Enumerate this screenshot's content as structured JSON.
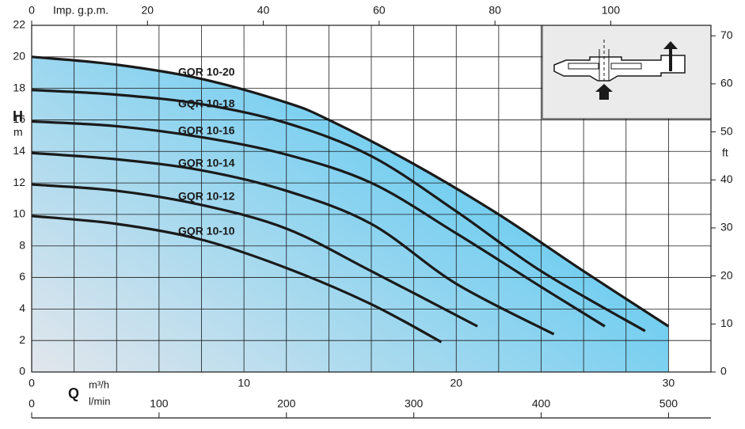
{
  "chart_data": {
    "type": "line",
    "y_label": "H",
    "y_unit": "m",
    "x_label": "Q",
    "x_unit": "m³/h",
    "xlim": [
      0,
      32
    ],
    "xticks": [
      0,
      10,
      20,
      30
    ],
    "xgrid": [
      2,
      4,
      6,
      8,
      12,
      14,
      16,
      18,
      22,
      24,
      26,
      28
    ],
    "ylim": [
      0,
      22
    ],
    "yticks": [
      0,
      2,
      4,
      6,
      8,
      10,
      12,
      14,
      16,
      18,
      20,
      22
    ],
    "grid": true,
    "line_color": "#1a1a1a",
    "fill_colors": [
      "#e2e6ec",
      "#4dc6f2"
    ],
    "x2": {
      "label": "l/min",
      "lim": [
        0,
        533.3
      ],
      "ticks": [
        0,
        100,
        200,
        300,
        400,
        500
      ]
    },
    "x3": {
      "label": "Imp. g.p.m.",
      "lim": [
        0,
        117.3
      ],
      "ticks": [
        0,
        20,
        40,
        60,
        80,
        100
      ]
    },
    "y2": {
      "label": "ft",
      "lim": [
        0,
        72.18
      ],
      "ticks": [
        0,
        10,
        20,
        30,
        40,
        50,
        60,
        70
      ]
    },
    "series": [
      {
        "name": "GQR 10-20",
        "x": [
          0,
          4,
          8,
          12,
          14,
          18,
          22,
          26,
          30
        ],
        "values": [
          20,
          19.5,
          18.6,
          17.1,
          16.0,
          13.2,
          10.0,
          6.4,
          2.9
        ]
      },
      {
        "name": "GQR 10-18",
        "x": [
          0,
          4,
          8,
          12,
          16,
          20,
          24,
          28.9
        ],
        "values": [
          17.9,
          17.6,
          17.0,
          15.8,
          13.7,
          10.2,
          6.4,
          2.6
        ]
      },
      {
        "name": "GQR 10-16",
        "x": [
          0,
          4,
          8,
          12,
          16,
          20,
          24,
          27
        ],
        "values": [
          15.9,
          15.6,
          14.9,
          13.8,
          12.0,
          8.8,
          5.4,
          2.9
        ]
      },
      {
        "name": "GQR 10-14",
        "x": [
          0,
          4,
          8,
          12,
          16,
          20,
          24.6
        ],
        "values": [
          13.9,
          13.5,
          12.8,
          11.5,
          9.4,
          5.6,
          2.4
        ]
      },
      {
        "name": "GQR 10-12",
        "x": [
          0,
          4,
          8,
          12,
          16,
          21
        ],
        "values": [
          11.9,
          11.5,
          10.6,
          9.1,
          6.4,
          2.9
        ]
      },
      {
        "name": "GQR 10-10",
        "x": [
          0,
          4,
          8,
          12,
          16,
          19.3
        ],
        "values": [
          9.9,
          9.4,
          8.4,
          6.6,
          4.3,
          1.9
        ]
      }
    ]
  }
}
